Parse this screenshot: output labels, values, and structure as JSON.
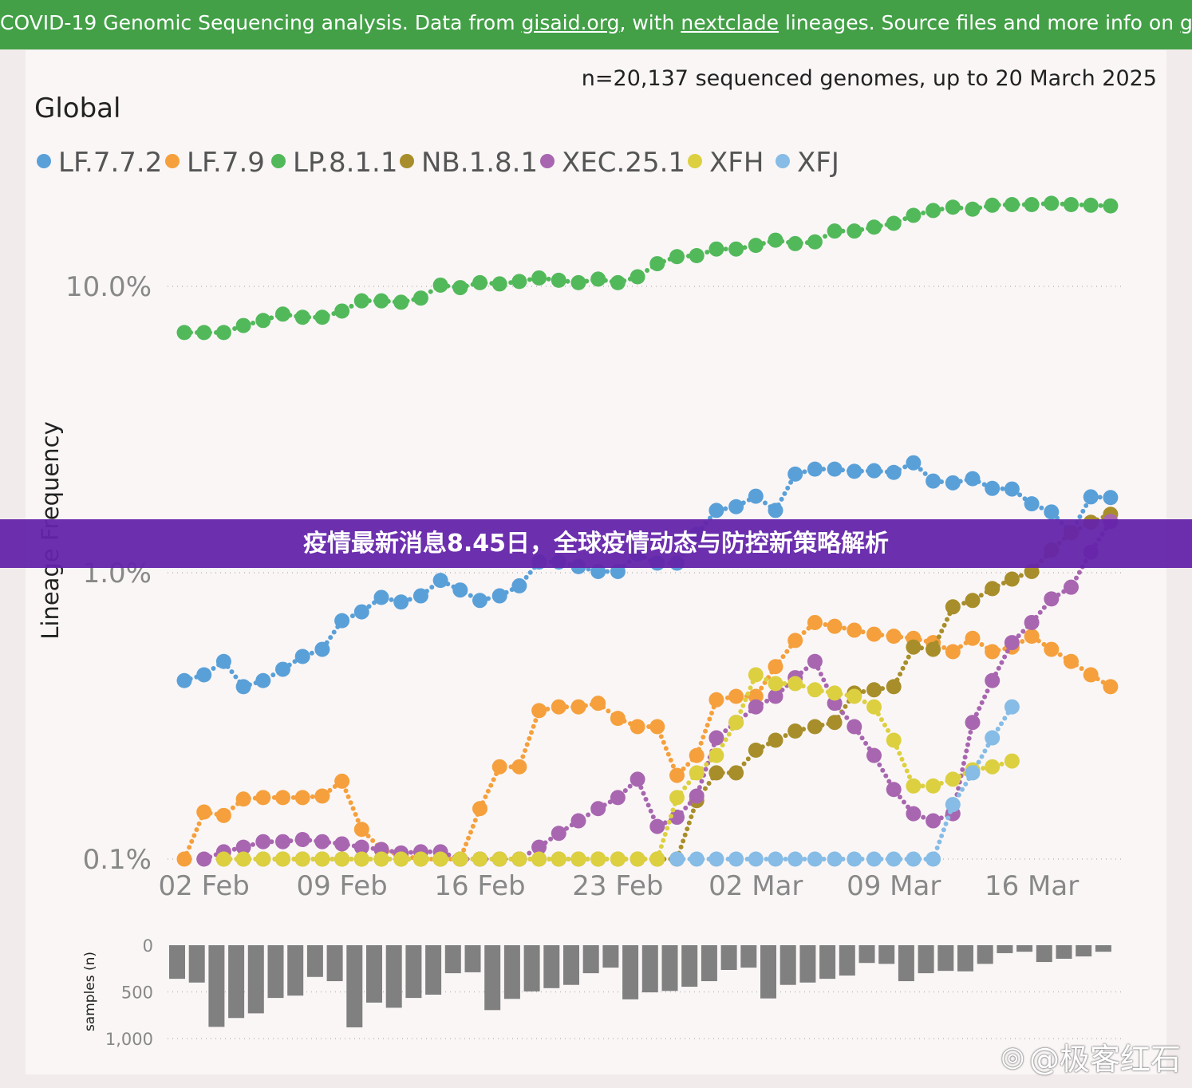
{
  "header": {
    "part1": "COVID-19 Genomic Sequencing analysis. Data from ",
    "link1": "gisaid.org",
    "part2": ", with ",
    "link2": "nextclade",
    "part3": " lineages. Source files and more info on ",
    "link3": "github",
    "part4": "."
  },
  "banner": {
    "title": "疫情最新消息8.45日，全球疫情动态与防控新策略解析"
  },
  "watermark": {
    "text": "@极客红石",
    "icon": "weibo-icon"
  },
  "colors": {
    "header": "#43a047",
    "banner": "#6424aa",
    "bars": "#808080"
  },
  "chart_data": [
    {
      "type": "line",
      "title": "Global",
      "subtitle": "n=20,137 sequenced genomes, up to 20 March 2025",
      "ylabel": "Lineage Frequency",
      "yscale": "log",
      "ylim": [
        0.1,
        20
      ],
      "yticks": [
        {
          "value": 0.1,
          "label": "0.1%"
        },
        {
          "value": 1,
          "label": "1.0%"
        },
        {
          "value": 10,
          "label": "10.0%"
        }
      ],
      "x_start": "2025-02-01",
      "x_days": 48,
      "xticks": [
        {
          "day": 1,
          "label": "02 Feb"
        },
        {
          "day": 8,
          "label": "09 Feb"
        },
        {
          "day": 15,
          "label": "16 Feb"
        },
        {
          "day": 22,
          "label": "23 Feb"
        },
        {
          "day": 29,
          "label": "02 Mar"
        },
        {
          "day": 36,
          "label": "09 Mar"
        },
        {
          "day": 43,
          "label": "16 Mar"
        }
      ],
      "legend_position": "top-left",
      "grid": true,
      "series": [
        {
          "name": "LF.7.7.2",
          "color": "#5aa0d8",
          "values": [
            0.42,
            0.44,
            0.49,
            0.4,
            0.42,
            0.46,
            0.51,
            0.54,
            0.68,
            0.73,
            0.82,
            0.79,
            0.83,
            0.94,
            0.87,
            0.8,
            0.83,
            0.9,
            1.09,
            1.09,
            1.05,
            1.01,
            1.01,
            1.16,
            1.08,
            1.08,
            1.36,
            1.65,
            1.7,
            1.85,
            1.65,
            2.21,
            2.3,
            2.3,
            2.26,
            2.27,
            2.24,
            2.42,
            2.09,
            2.06,
            2.13,
            1.97,
            1.96,
            1.74,
            1.63,
            1.38,
            1.84,
            1.83
          ]
        },
        {
          "name": "LF.7.9",
          "color": "#f5a03c",
          "values": [
            0.1,
            0.146,
            0.142,
            0.162,
            0.164,
            0.164,
            0.164,
            0.166,
            0.187,
            0.127,
            0.108,
            0.103,
            0.1,
            0.1,
            0.1,
            0.15,
            0.21,
            0.21,
            0.33,
            0.34,
            0.34,
            0.35,
            0.31,
            0.29,
            0.29,
            0.196,
            0.23,
            0.36,
            0.37,
            0.37,
            0.47,
            0.58,
            0.67,
            0.65,
            0.63,
            0.61,
            0.6,
            0.59,
            0.57,
            0.53,
            0.59,
            0.53,
            0.55,
            0.6,
            0.54,
            0.49,
            0.44,
            0.4
          ]
        },
        {
          "name": "LP.8.1.1",
          "color": "#52b95a",
          "values": [
            6.9,
            6.9,
            6.9,
            7.3,
            7.6,
            8.0,
            7.8,
            7.8,
            8.2,
            8.9,
            8.9,
            8.8,
            9.1,
            10.1,
            9.9,
            10.3,
            10.2,
            10.4,
            10.7,
            10.5,
            10.3,
            10.6,
            10.3,
            10.8,
            12.0,
            12.7,
            12.8,
            13.5,
            13.5,
            13.9,
            14.5,
            14.1,
            14.3,
            15.6,
            15.6,
            16.1,
            16.6,
            17.7,
            18.4,
            18.9,
            18.6,
            19.2,
            19.3,
            19.3,
            19.5,
            19.3,
            19.2,
            19.1
          ]
        },
        {
          "name": "NB.1.8.1",
          "color": "#a88e2a",
          "values": [
            null,
            null,
            0.1,
            0.1,
            0.1,
            0.1,
            0.1,
            0.1,
            0.1,
            0.1,
            0.1,
            0.1,
            0.1,
            0.1,
            0.1,
            0.1,
            0.1,
            0.1,
            0.1,
            0.1,
            0.1,
            0.1,
            0.1,
            0.1,
            0.1,
            0.1,
            0.16,
            0.2,
            0.2,
            0.24,
            0.26,
            0.28,
            0.29,
            0.3,
            0.38,
            0.39,
            0.4,
            0.55,
            0.54,
            0.76,
            0.8,
            0.88,
            0.95,
            1.01,
            1.2,
            1.38,
            1.5,
            1.6
          ]
        },
        {
          "name": "XEC.25.1",
          "color": "#a866b0",
          "values": [
            null,
            0.1,
            0.106,
            0.11,
            0.115,
            0.115,
            0.117,
            0.115,
            0.113,
            0.11,
            0.108,
            0.105,
            0.106,
            0.106,
            0.1,
            0.1,
            0.1,
            0.1,
            0.11,
            0.123,
            0.136,
            0.15,
            0.164,
            0.19,
            0.13,
            0.14,
            0.166,
            0.265,
            0.3,
            0.34,
            0.37,
            0.43,
            0.49,
            0.35,
            0.29,
            0.23,
            0.175,
            0.144,
            0.136,
            0.144,
            0.3,
            0.42,
            0.57,
            0.67,
            0.81,
            0.89,
            1.18,
            1.51
          ]
        },
        {
          "name": "XFH",
          "color": "#dcd040",
          "values": [
            null,
            null,
            0.1,
            0.1,
            0.1,
            0.1,
            0.1,
            0.1,
            0.1,
            0.1,
            0.1,
            0.1,
            0.1,
            0.1,
            0.1,
            0.1,
            0.1,
            0.1,
            0.1,
            0.1,
            0.1,
            0.1,
            0.1,
            0.1,
            0.1,
            0.164,
            0.2,
            0.23,
            0.3,
            0.44,
            0.41,
            0.41,
            0.39,
            0.38,
            0.37,
            0.34,
            0.26,
            0.18,
            0.18,
            0.19,
            0.205,
            0.21,
            0.22,
            null,
            null,
            null,
            null,
            null
          ]
        },
        {
          "name": "XFJ",
          "color": "#86bce6",
          "values": [
            null,
            null,
            null,
            null,
            null,
            null,
            null,
            null,
            null,
            null,
            null,
            null,
            null,
            null,
            null,
            null,
            null,
            null,
            null,
            null,
            null,
            null,
            null,
            null,
            null,
            0.1,
            0.1,
            0.1,
            0.1,
            0.1,
            0.1,
            0.1,
            0.1,
            0.1,
            0.1,
            0.1,
            0.1,
            0.1,
            0.1,
            0.155,
            0.2,
            0.265,
            0.34,
            null,
            null,
            null,
            null,
            null
          ]
        }
      ]
    },
    {
      "type": "bar",
      "ylabel": "samples (n)",
      "ylim": [
        0,
        1000
      ],
      "inverted": true,
      "yticks": [
        {
          "value": 0,
          "label": "0"
        },
        {
          "value": 500,
          "label": "500"
        },
        {
          "value": 1000,
          "label": "1,000"
        }
      ],
      "values": [
        360,
        400,
        875,
        780,
        730,
        565,
        540,
        340,
        385,
        880,
        615,
        670,
        565,
        530,
        300,
        290,
        695,
        575,
        495,
        460,
        425,
        300,
        240,
        580,
        505,
        490,
        445,
        385,
        265,
        240,
        570,
        425,
        400,
        360,
        325,
        190,
        200,
        385,
        300,
        275,
        280,
        200,
        85,
        70,
        180,
        145,
        120,
        70
      ]
    }
  ]
}
